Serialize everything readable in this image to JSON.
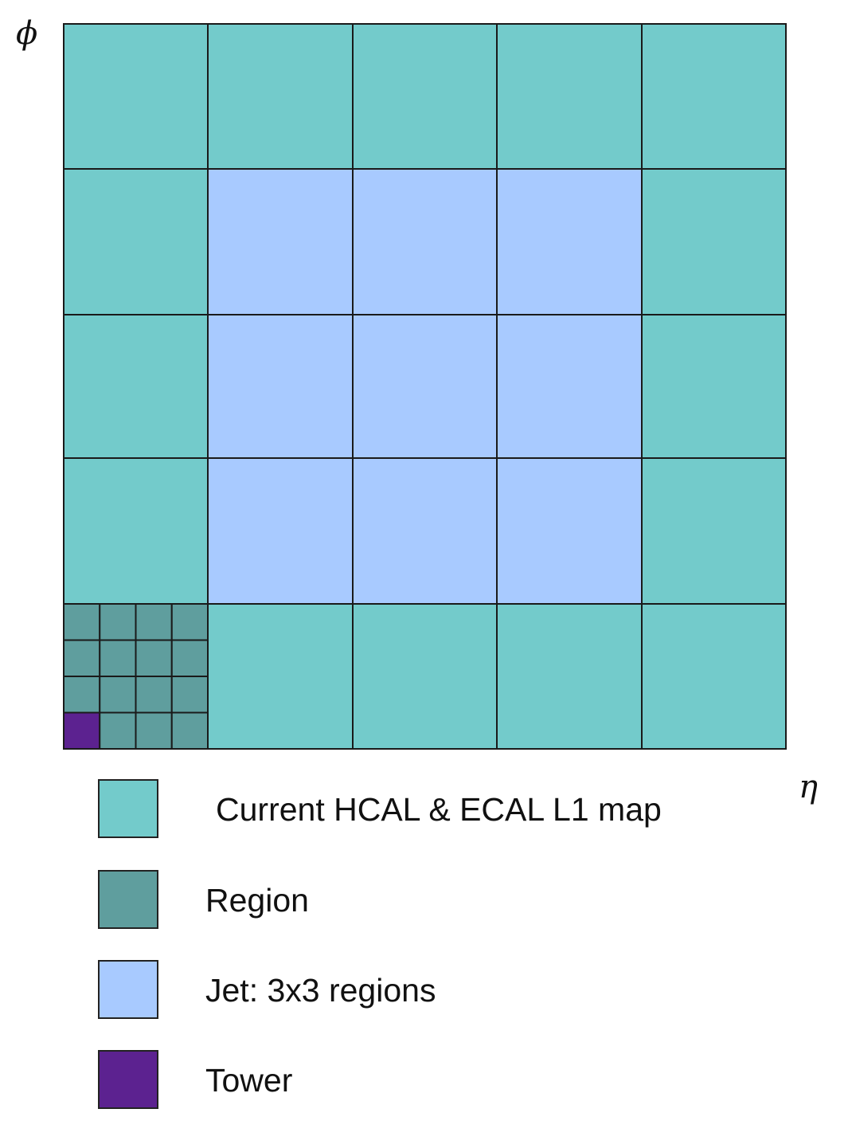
{
  "axes": {
    "vertical": "ϕ",
    "horizontal": "η"
  },
  "grid": {
    "rows": 5,
    "cols": 5,
    "sub_rows": 4,
    "sub_cols": 4
  },
  "colors": {
    "map": "#73cbcb",
    "region": "#5f9e9e",
    "jet": "#a8caff",
    "tower": "#5c2290",
    "line": "#1a1a1a"
  },
  "legend": [
    {
      "label": "Current HCAL & ECAL L1 map",
      "color": "#73cbcb"
    },
    {
      "label": "Region",
      "color": "#5f9e9e"
    },
    {
      "label": "Jet: 3x3 regions",
      "color": "#a8caff"
    },
    {
      "label": "Tower",
      "color": "#5c2290"
    }
  ]
}
